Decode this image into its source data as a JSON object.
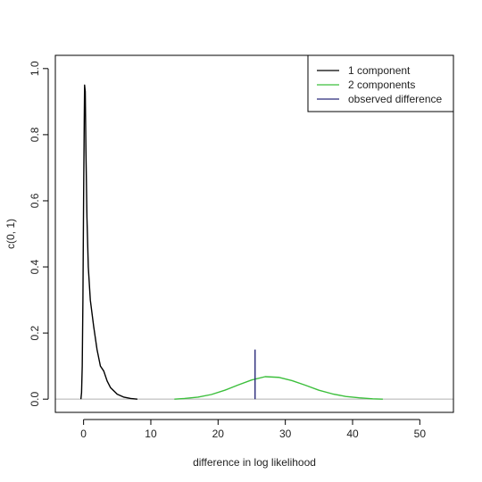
{
  "chart_data": {
    "type": "line",
    "title": "",
    "xlabel": "difference in log likelihood",
    "ylabel": "c(0, 1)",
    "xlim": [
      -4.2,
      55
    ],
    "ylim": [
      -0.04,
      1.04
    ],
    "x_ticks": [
      0,
      10,
      20,
      30,
      40,
      50
    ],
    "y_ticks": [
      0.0,
      0.2,
      0.4,
      0.6,
      0.8,
      1.0
    ],
    "x_tick_labels": [
      "0",
      "10",
      "20",
      "30",
      "40",
      "50"
    ],
    "y_tick_labels": [
      "0.0",
      "0.2",
      "0.4",
      "0.6",
      "0.8",
      "1.0"
    ],
    "grid": false,
    "legend_position": "top-right",
    "reference_line": {
      "y": 0,
      "color": "#b0b0b0"
    },
    "series": [
      {
        "name": "1 component",
        "color": "#000000",
        "points": [
          [
            -0.4,
            0.0
          ],
          [
            -0.3,
            0.02
          ],
          [
            -0.2,
            0.1
          ],
          [
            -0.1,
            0.3
          ],
          [
            0.0,
            0.6
          ],
          [
            0.1,
            0.85
          ],
          [
            0.15,
            0.95
          ],
          [
            0.25,
            0.93
          ],
          [
            0.35,
            0.75
          ],
          [
            0.5,
            0.55
          ],
          [
            0.7,
            0.4
          ],
          [
            1.0,
            0.3
          ],
          [
            1.5,
            0.22
          ],
          [
            2.0,
            0.15
          ],
          [
            2.5,
            0.1
          ],
          [
            3.0,
            0.085
          ],
          [
            3.5,
            0.055
          ],
          [
            4.0,
            0.035
          ],
          [
            5.0,
            0.015
          ],
          [
            6.0,
            0.006
          ],
          [
            7.0,
            0.002
          ],
          [
            8.0,
            0.0
          ]
        ]
      },
      {
        "name": "2 components",
        "color": "#3cbf3c",
        "points": [
          [
            13.5,
            0.0
          ],
          [
            15,
            0.002
          ],
          [
            17,
            0.006
          ],
          [
            19,
            0.014
          ],
          [
            21,
            0.027
          ],
          [
            23,
            0.043
          ],
          [
            25,
            0.058
          ],
          [
            27,
            0.068
          ],
          [
            29,
            0.066
          ],
          [
            31,
            0.056
          ],
          [
            33,
            0.042
          ],
          [
            35,
            0.027
          ],
          [
            37,
            0.016
          ],
          [
            39,
            0.008
          ],
          [
            41,
            0.004
          ],
          [
            43,
            0.001
          ],
          [
            44.5,
            0.0
          ]
        ]
      },
      {
        "name": "observed difference",
        "color": "#2a2a7a",
        "points": [
          [
            25.5,
            0.0
          ],
          [
            25.5,
            0.15
          ]
        ]
      }
    ]
  }
}
